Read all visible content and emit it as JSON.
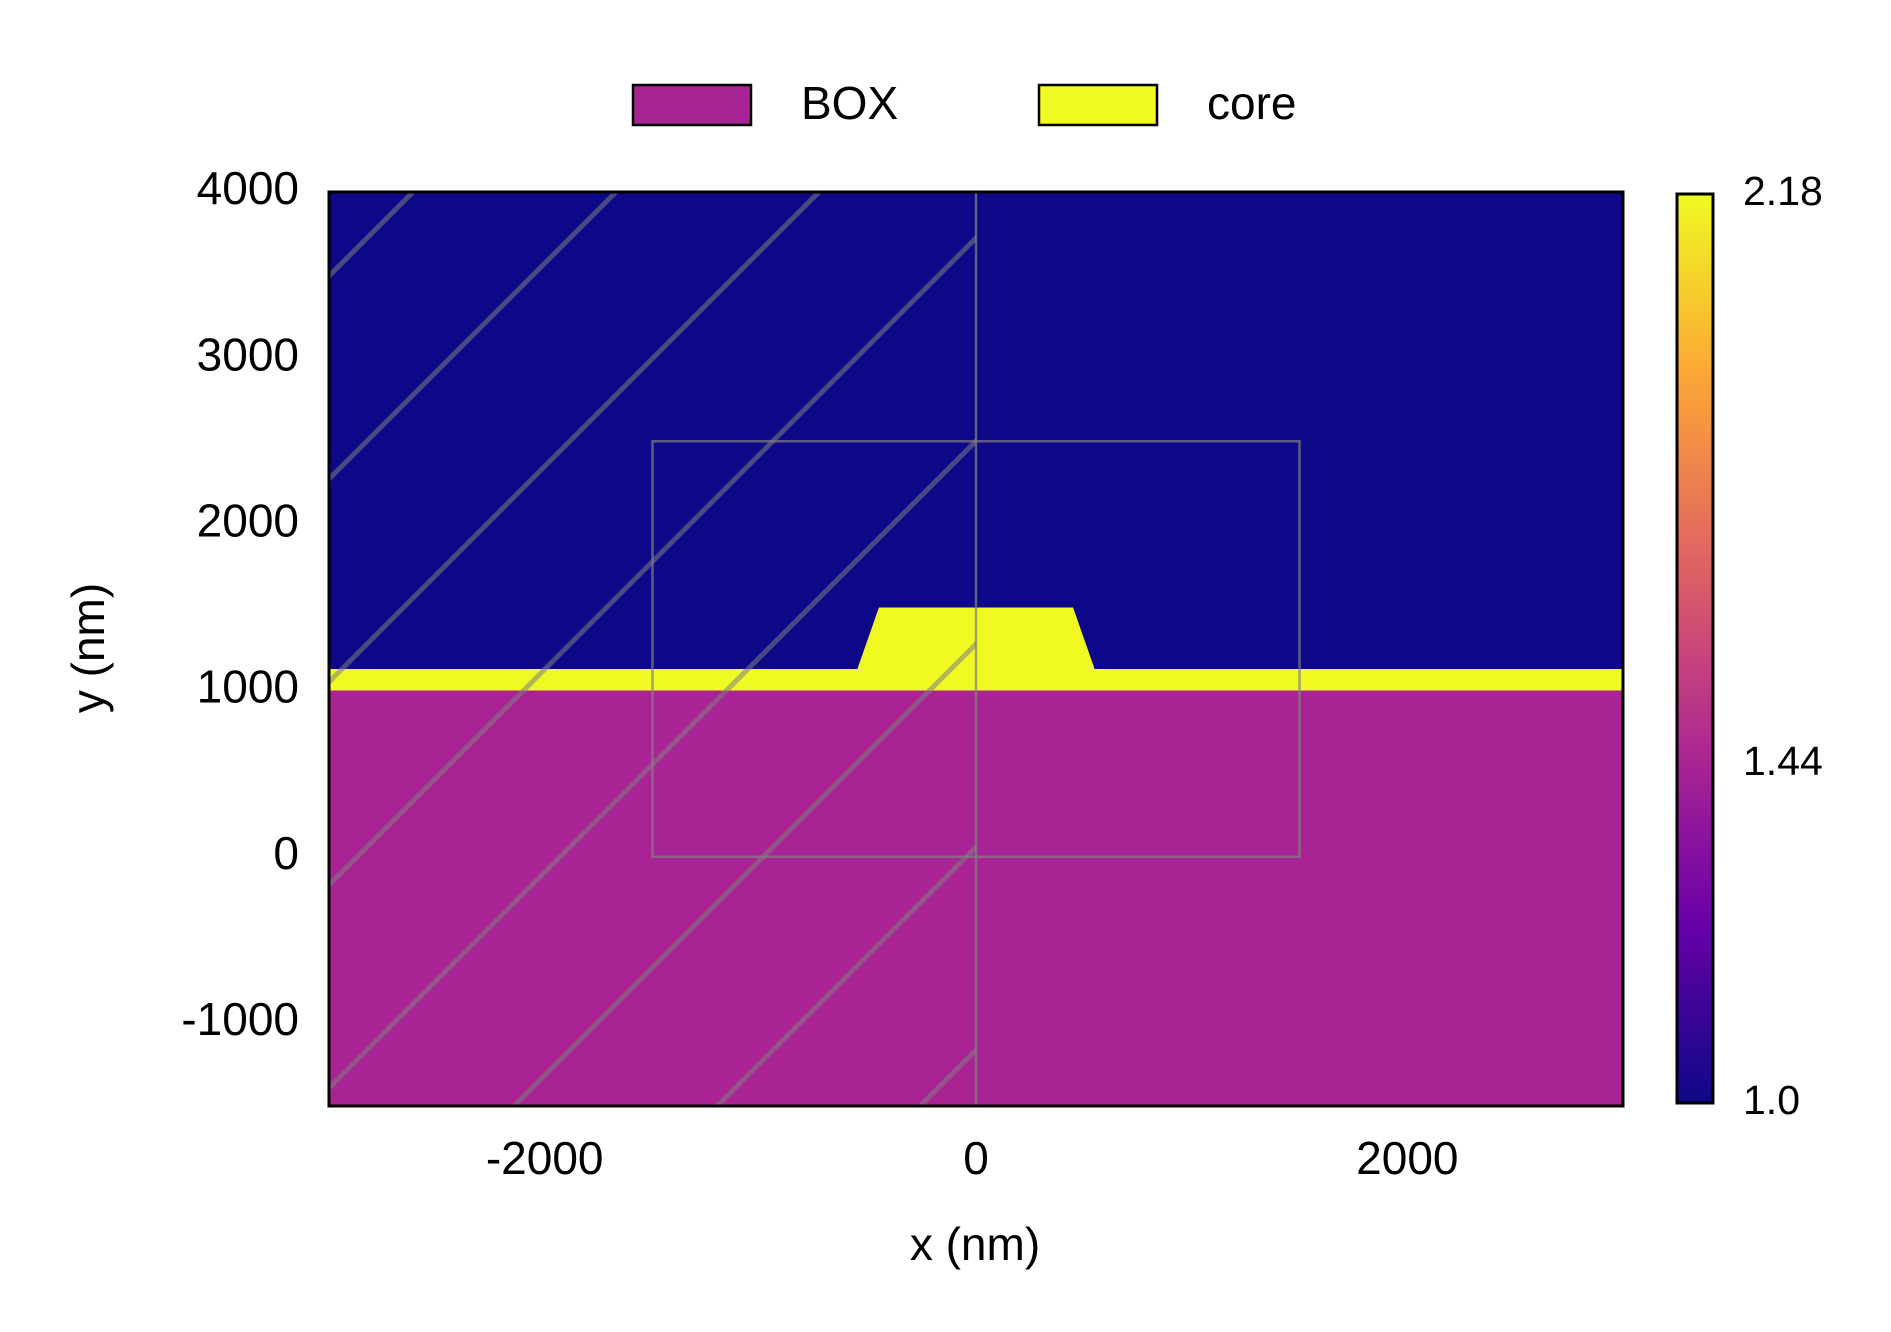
{
  "chart_data": {
    "type": "geometry",
    "xlabel": "x (nm)",
    "ylabel": "y (nm)",
    "xlim": [
      -3000,
      3000
    ],
    "ylim": [
      -1500,
      4000
    ],
    "xticks": [
      -2000,
      0,
      2000
    ],
    "yticks": [
      -1000,
      0,
      1000,
      2000,
      3000,
      4000
    ],
    "background": "#0d0887",
    "series": [
      {
        "name": "BOX",
        "color": "#aa2395",
        "x": [
          -3000,
          3000,
          3000,
          -3000
        ],
        "y": [
          -1500,
          -1500,
          1000,
          1000
        ]
      },
      {
        "name": "core",
        "color": "#f0f921",
        "x": [
          -3000,
          -3000,
          -550,
          -450,
          450,
          550,
          3000,
          3000
        ],
        "y": [
          1000,
          1130,
          1130,
          1500,
          1500,
          1130,
          1130,
          1000
        ]
      }
    ],
    "overlay": {
      "x": [
        -1500,
        1500
      ],
      "y": [
        0,
        2500
      ],
      "color": "#808080"
    },
    "symmetry_x": 0,
    "colorbar": {
      "lim": [
        1,
        2.18
      ],
      "ticks": [
        {
          "value": 1,
          "label": "1.0"
        },
        1.44,
        2.18
      ],
      "colors": [
        "#0d0887",
        "#6a00a8",
        "#b12a90",
        "#e16462",
        "#fca636",
        "#f0f921"
      ]
    }
  }
}
